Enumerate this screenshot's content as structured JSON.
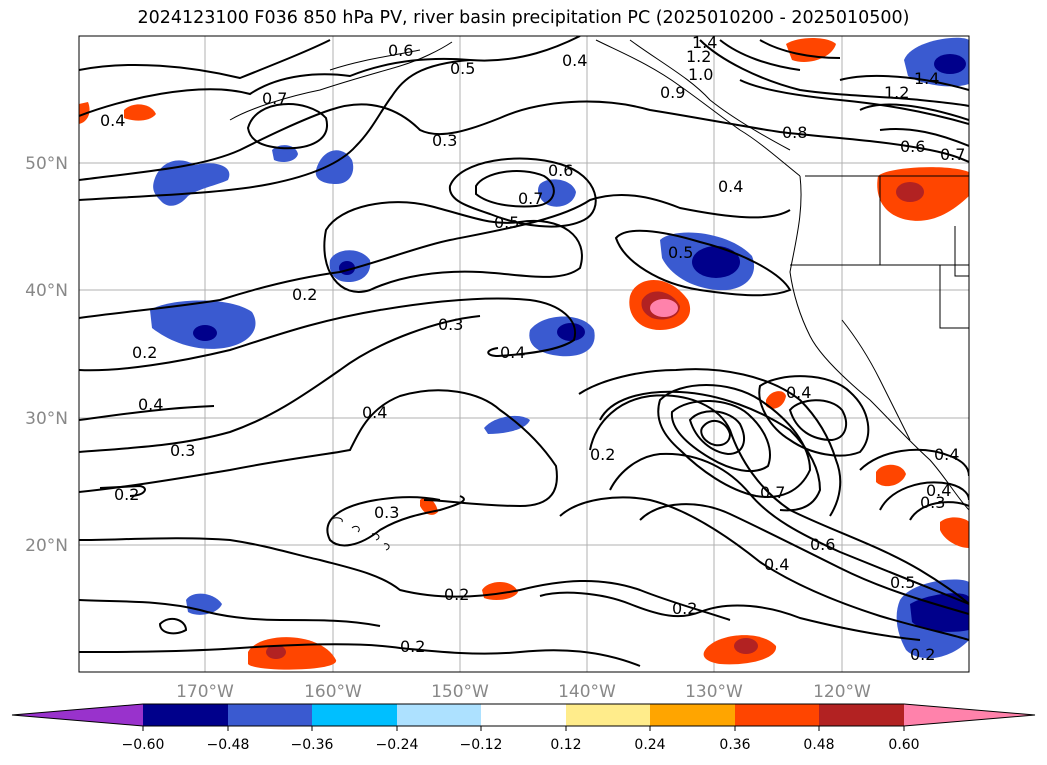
{
  "title": "2024123100 F036 850 hPa PV, river basin precipitation PC (2025010200 - 2025010500)",
  "map": {
    "lat_labels": [
      "50°N",
      "40°N",
      "30°N",
      "20°N"
    ],
    "lon_labels": [
      "170°W",
      "160°W",
      "150°W",
      "140°W",
      "130°W",
      "120°W"
    ],
    "contour_labels": [
      "0.6",
      "0.5",
      "0.4",
      "1.4",
      "1.2",
      "1.0",
      "0.9",
      "0.7",
      "0.3",
      "0.6",
      "0.7",
      "0.5",
      "0.4",
      "0.8",
      "0.6",
      "0.7",
      "1.4",
      "1.2",
      "0.4",
      "0.5",
      "0.2",
      "0.3",
      "0.4",
      "0.2",
      "0.4",
      "0.4",
      "0.3",
      "0.2",
      "0.4",
      "0.2",
      "0.3",
      "0.4",
      "0.7",
      "0.6",
      "0.4",
      "0.5",
      "0.2",
      "0.2",
      "0.2",
      "0.2",
      "0.4",
      "0.3"
    ]
  },
  "colorbar": {
    "ticks": [
      "−0.60",
      "−0.48",
      "−0.36",
      "−0.24",
      "−0.12",
      "0.12",
      "0.24",
      "0.36",
      "0.48",
      "0.60"
    ],
    "colors": [
      "#9932CC",
      "#00008B",
      "#3A5AD0",
      "#00BFFF",
      "#ADE1FF",
      "#FFFFFF",
      "#FFEC8B",
      "#FFA500",
      "#FF4500",
      "#B22222",
      "#FF82AB"
    ]
  }
}
